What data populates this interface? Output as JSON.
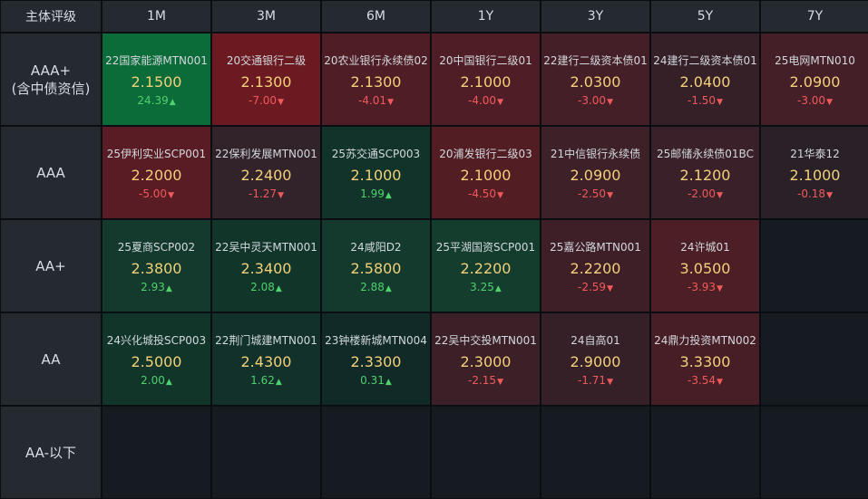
{
  "header": {
    "corner": "主体评级",
    "terms": [
      "1M",
      "3M",
      "6M",
      "1Y",
      "3Y",
      "5Y",
      "7Y"
    ]
  },
  "rows": [
    {
      "label": "AAA+",
      "sublabel": "(含中债资信)",
      "cells": [
        {
          "name": "22国家能源MTN001",
          "yield": "2.1500",
          "change": "24.39",
          "dir": "up",
          "bg": "#0b6b39"
        },
        {
          "name": "20交通银行二级",
          "yield": "2.1300",
          "change": "-7.00",
          "dir": "down",
          "bg": "#6b1a22"
        },
        {
          "name": "20农业银行永续债02",
          "yield": "2.1300",
          "change": "-4.01",
          "dir": "down",
          "bg": "#4f1d25"
        },
        {
          "name": "20中国银行二级01",
          "yield": "2.1000",
          "change": "-4.00",
          "dir": "down",
          "bg": "#4f1d25"
        },
        {
          "name": "22建行二级资本债01",
          "yield": "2.0300",
          "change": "-3.00",
          "dir": "down",
          "bg": "#451f27"
        },
        {
          "name": "24建行二级资本债01",
          "yield": "2.0400",
          "change": "-1.50",
          "dir": "down",
          "bg": "#362028"
        },
        {
          "name": "25电网MTN010",
          "yield": "2.0900",
          "change": "-3.00",
          "dir": "down",
          "bg": "#451f27"
        }
      ]
    },
    {
      "label": "AAA",
      "sublabel": "",
      "cells": [
        {
          "name": "25伊利实业SCP001",
          "yield": "2.2000",
          "change": "-5.00",
          "dir": "down",
          "bg": "#591c24"
        },
        {
          "name": "22保利发展MTN001",
          "yield": "2.2400",
          "change": "-1.27",
          "dir": "down",
          "bg": "#32222a"
        },
        {
          "name": "25苏交通SCP003",
          "yield": "2.1000",
          "change": "1.99",
          "dir": "up",
          "bg": "#123329"
        },
        {
          "name": "20浦发银行二级03",
          "yield": "2.1000",
          "change": "-4.50",
          "dir": "down",
          "bg": "#531d24"
        },
        {
          "name": "21中信银行永续债",
          "yield": "2.0900",
          "change": "-2.50",
          "dir": "down",
          "bg": "#3e2028"
        },
        {
          "name": "25邮储永续债01BC",
          "yield": "2.1200",
          "change": "-2.00",
          "dir": "down",
          "bg": "#3a2028"
        },
        {
          "name": "21华泰12",
          "yield": "2.1000",
          "change": "-0.18",
          "dir": "down",
          "bg": "#2a2128"
        }
      ]
    },
    {
      "label": "AA+",
      "sublabel": "",
      "cells": [
        {
          "name": "25夏商SCP002",
          "yield": "2.3800",
          "change": "2.93",
          "dir": "up",
          "bg": "#133a2c"
        },
        {
          "name": "22吴中灵天MTN001",
          "yield": "2.3400",
          "change": "2.08",
          "dir": "up",
          "bg": "#12352a"
        },
        {
          "name": "24咸阳D2",
          "yield": "2.5800",
          "change": "2.88",
          "dir": "up",
          "bg": "#133a2c"
        },
        {
          "name": "25平湖国资SCP001",
          "yield": "2.2200",
          "change": "3.25",
          "dir": "up",
          "bg": "#143d2e"
        },
        {
          "name": "25嘉公路MTN001",
          "yield": "2.2200",
          "change": "-2.59",
          "dir": "down",
          "bg": "#3f1f27"
        },
        {
          "name": "24许城01",
          "yield": "3.0500",
          "change": "-3.93",
          "dir": "down",
          "bg": "#4c1e25"
        },
        null
      ]
    },
    {
      "label": "AA",
      "sublabel": "",
      "cells": [
        {
          "name": "24兴化城投SCP003",
          "yield": "2.5000",
          "change": "2.00",
          "dir": "up",
          "bg": "#12352a"
        },
        {
          "name": "22荆门城建MTN001",
          "yield": "2.4300",
          "change": "1.62",
          "dir": "up",
          "bg": "#11312a"
        },
        {
          "name": "23钟楼新城MTN004",
          "yield": "2.3300",
          "change": "0.31",
          "dir": "up",
          "bg": "#112a28"
        },
        {
          "name": "22吴中交投MTN001",
          "yield": "2.3000",
          "change": "-2.15",
          "dir": "down",
          "bg": "#3c2028"
        },
        {
          "name": "24自高01",
          "yield": "2.9000",
          "change": "-1.71",
          "dir": "down",
          "bg": "#362028"
        },
        {
          "name": "24鼎力投资MTN002",
          "yield": "3.3300",
          "change": "-3.54",
          "dir": "down",
          "bg": "#481e26"
        },
        null
      ]
    },
    {
      "label": "AA-以下",
      "sublabel": "",
      "cells": [
        null,
        null,
        null,
        null,
        null,
        null,
        null
      ]
    }
  ]
}
